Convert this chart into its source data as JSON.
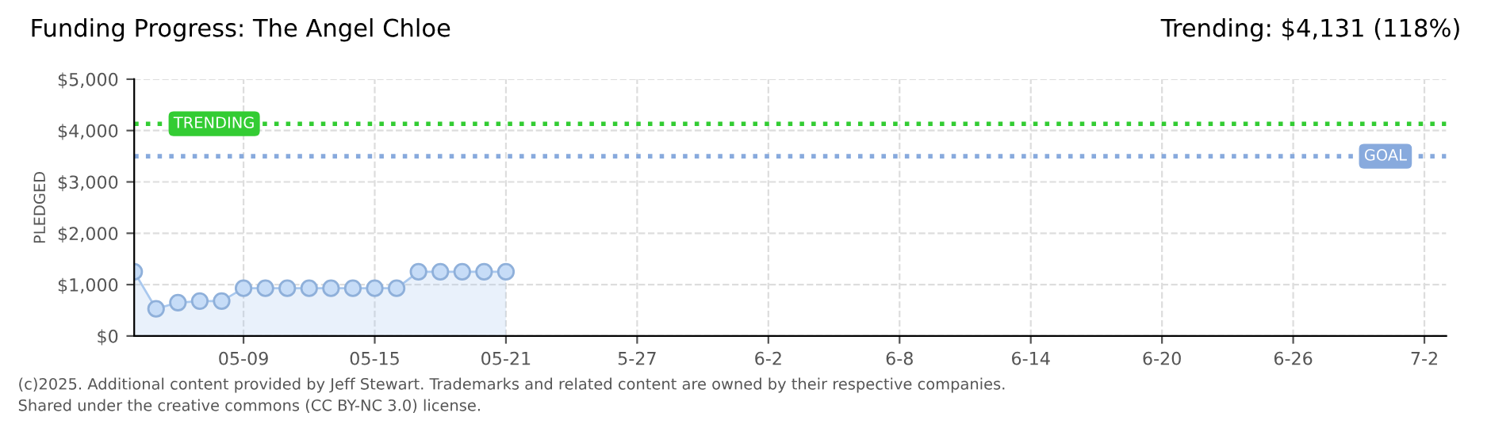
{
  "chart_data": {
    "type": "area",
    "title": "Funding Progress: The Angel Chloe",
    "subtitle": "Trending: $4,131 (118%)",
    "ylabel": "PLEDGED",
    "x": [
      "2025-05-04",
      "2025-05-05",
      "2025-05-06",
      "2025-05-07",
      "2025-05-08",
      "2025-05-09",
      "2025-05-10",
      "2025-05-11",
      "2025-05-12",
      "2025-05-13",
      "2025-05-14",
      "2025-05-15",
      "2025-05-16",
      "2025-05-17",
      "2025-05-18",
      "2025-05-19",
      "2025-05-20",
      "2025-05-21"
    ],
    "series": [
      {
        "color": "#a9c8ee",
        "values": [
          1250,
          530,
          650,
          680,
          680,
          930,
          930,
          930,
          930,
          930,
          930,
          930,
          930,
          1250,
          1250,
          1250,
          1250,
          1250
        ]
      }
    ],
    "xlim": [
      "2025-05-04",
      "2025-07-03"
    ],
    "xticks": [
      {
        "value": "2025-05-09",
        "label": "05-09"
      },
      {
        "value": "2025-05-15",
        "label": "05-15"
      },
      {
        "value": "2025-05-21",
        "label": "05-21"
      },
      {
        "value": "2025-05-27",
        "label": "5-27"
      },
      {
        "value": "2025-06-02",
        "label": "6-2"
      },
      {
        "value": "2025-06-08",
        "label": "6-8"
      },
      {
        "value": "2025-06-14",
        "label": "6-14"
      },
      {
        "value": "2025-06-20",
        "label": "6-20"
      },
      {
        "value": "2025-06-26",
        "label": "6-26"
      },
      {
        "value": "2025-07-02",
        "label": "7-2"
      }
    ],
    "ylim": [
      0,
      5000
    ],
    "yticks": [
      {
        "value": 0,
        "label": "$0"
      },
      {
        "value": 1000,
        "label": "$1,000"
      },
      {
        "value": 2000,
        "label": "$2,000"
      },
      {
        "value": 3000,
        "label": "$3,000"
      },
      {
        "value": 4000,
        "label": "$4,000"
      },
      {
        "value": 5000,
        "label": "$5,000"
      }
    ],
    "ref_lines": [
      {
        "axis": "y",
        "value": 4131,
        "label": "TRENDING",
        "color": "#33cc33",
        "line_style": "dotted"
      },
      {
        "axis": "y",
        "value": 3500,
        "label": "GOAL",
        "color": "#88aadd",
        "line_style": "dotted"
      }
    ],
    "grid": true,
    "marker": "circle",
    "annotations": [
      "(c)2025. Additional content provided by Jeff Stewart. Trademarks and related content are owned by their respective companies.",
      "Shared under the creative commons (CC BY-NC 3.0) license."
    ]
  }
}
